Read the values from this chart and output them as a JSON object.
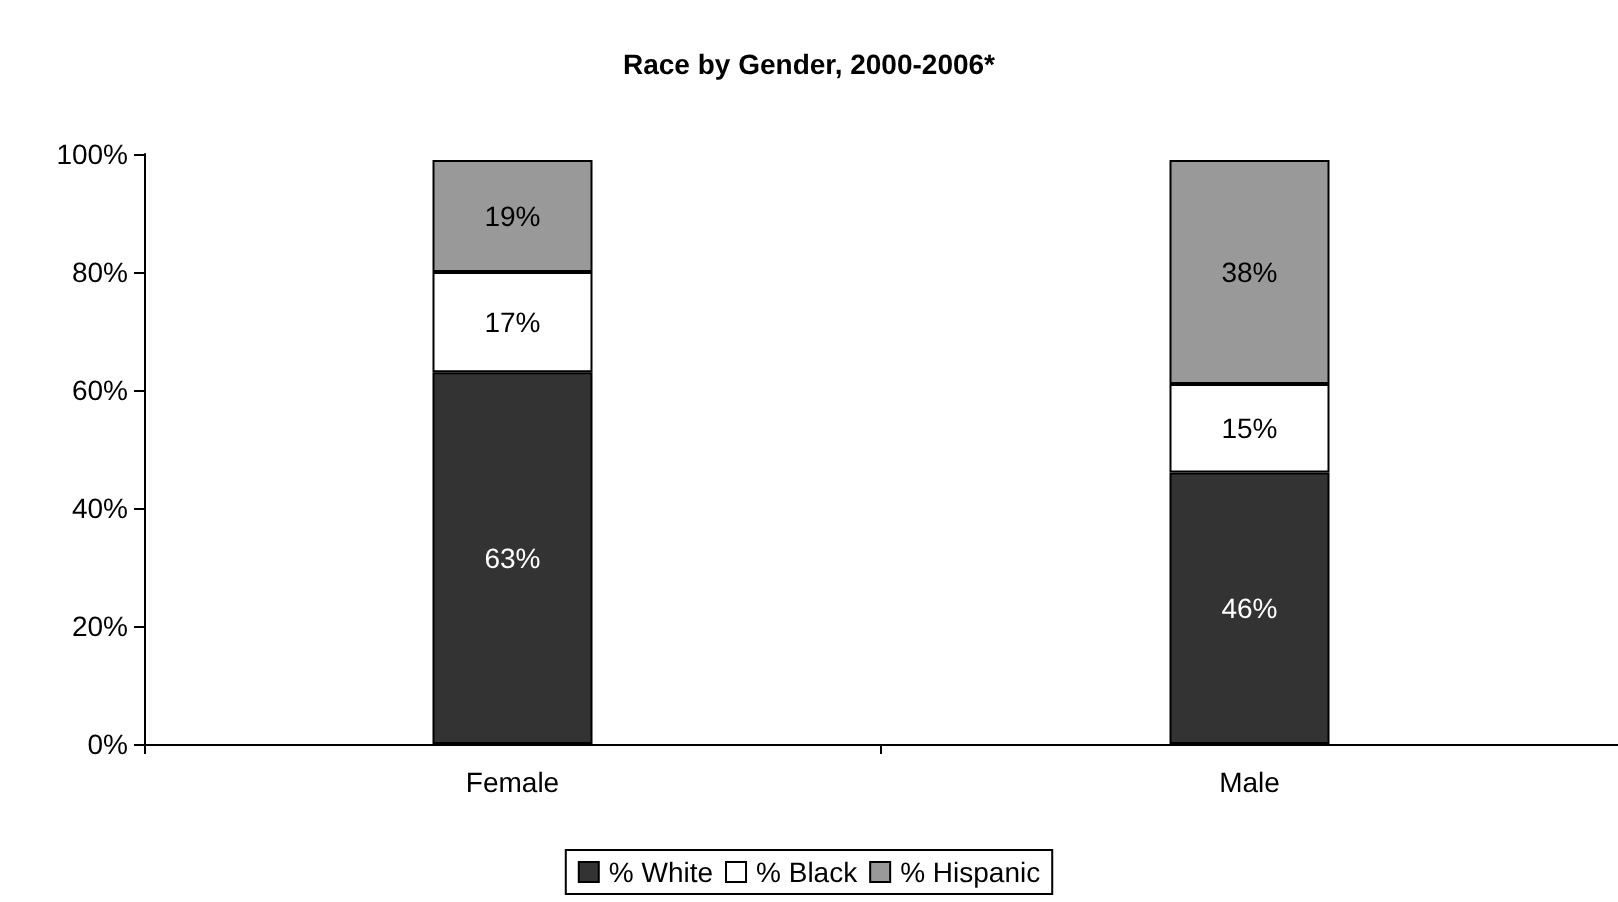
{
  "chart_data": {
    "type": "bar",
    "title": "Race by Gender, 2000-2006*",
    "categories": [
      "Female",
      "Male"
    ],
    "series": [
      {
        "name": "% White",
        "color": "#333333",
        "values": [
          63,
          46
        ],
        "value_labels": [
          "63%",
          "46%"
        ]
      },
      {
        "name": "% Black",
        "color": "#ffffff",
        "values": [
          17,
          15
        ],
        "value_labels": [
          "17%",
          "15%"
        ]
      },
      {
        "name": "% Hispanic",
        "color": "#999999",
        "values": [
          19,
          38
        ],
        "value_labels": [
          "19%",
          "38%"
        ]
      }
    ],
    "stacked": true,
    "ylim": [
      0,
      100
    ],
    "yticks": [
      {
        "value": 0,
        "label": "0%"
      },
      {
        "value": 20,
        "label": "20%"
      },
      {
        "value": 40,
        "label": "40%"
      },
      {
        "value": 60,
        "label": "60%"
      },
      {
        "value": 80,
        "label": "80%"
      },
      {
        "value": 100,
        "label": "100%"
      }
    ],
    "grid": false,
    "legend": "bottom"
  }
}
